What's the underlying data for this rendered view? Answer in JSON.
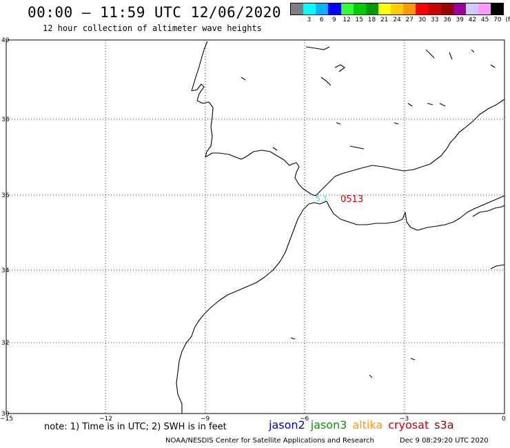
{
  "header": {
    "title": "00:00 – 11:59 UTC 12/06/2020",
    "subtitle": "12 hour collection of altimeter wave heights"
  },
  "legend": {
    "colors": [
      "#7f7f7f",
      "#00ffff",
      "#00b4ff",
      "#0000ff",
      "#33ff33",
      "#00cc00",
      "#009900",
      "#ffff00",
      "#ffcc00",
      "#ff9900",
      "#ff0000",
      "#cc0000",
      "#990000",
      "#990099",
      "#ccccff",
      "#ff99ff",
      "#000000"
    ],
    "labels": [
      "3",
      "6",
      "9",
      "12",
      "15",
      "18",
      "21",
      "24",
      "27",
      "30",
      "33",
      "36",
      "39",
      "42",
      "45",
      "70",
      "(ft)"
    ]
  },
  "axes": {
    "x_ticks": [
      "−15",
      "−12",
      "−9",
      "−6",
      "−3",
      "0"
    ],
    "y_ticks": [
      "40",
      "38",
      "36",
      "34",
      "32",
      "30"
    ]
  },
  "observations": [
    {
      "label": "5.1",
      "color": "#33dddd"
    },
    {
      "label": "0513",
      "color": "#cc0000"
    }
  ],
  "footer": {
    "note": "note: 1) Time is in UTC; 2) SWH is in feet",
    "missions": [
      {
        "name": "jason2",
        "color": "#0000cc"
      },
      {
        "name": "jason3",
        "color": "#009900"
      },
      {
        "name": "altika",
        "color": "#ff9900"
      },
      {
        "name": "cryosat",
        "color": "#cc0000"
      },
      {
        "name": "s3a",
        "color": "#990000"
      }
    ],
    "credit": "NOAA/NESDIS Center for Satellite Applications and Research",
    "timestamp": "Dec  9 08:29:20 UTC 2020"
  }
}
